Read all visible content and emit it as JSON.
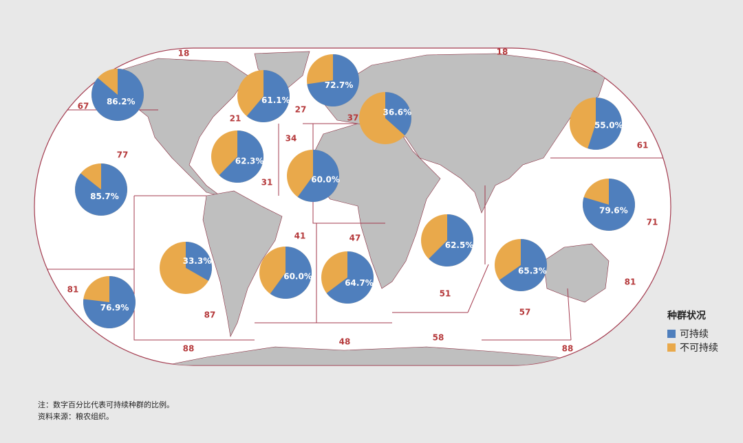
{
  "legend": {
    "title": "种群状况",
    "items": [
      {
        "name": "可持续",
        "color": "#4f7fbd"
      },
      {
        "name": "不可持续",
        "color": "#e9a94b"
      }
    ]
  },
  "areas": [
    "18",
    "18",
    "67",
    "21",
    "27",
    "37",
    "34",
    "77",
    "31",
    "61",
    "71",
    "41",
    "47",
    "81",
    "87",
    "51",
    "57",
    "81",
    "88",
    "48",
    "58",
    "88"
  ],
  "pies": [
    {
      "value": 86.2,
      "label": "86.2%"
    },
    {
      "value": 61.1,
      "label": "61.1%"
    },
    {
      "value": 72.7,
      "label": "72.7%"
    },
    {
      "value": 36.6,
      "label": "36.6%"
    },
    {
      "value": 55.0,
      "label": "55.0%"
    },
    {
      "value": 62.3,
      "label": "62.3%"
    },
    {
      "value": 60.0,
      "label": "60.0%"
    },
    {
      "value": 85.7,
      "label": "85.7%"
    },
    {
      "value": 79.6,
      "label": "79.6%"
    },
    {
      "value": 62.5,
      "label": "62.5%"
    },
    {
      "value": 33.3,
      "label": "33.3%"
    },
    {
      "value": 60.0,
      "label": "60.0%"
    },
    {
      "value": 64.7,
      "label": "64.7%"
    },
    {
      "value": 65.3,
      "label": "65.3%"
    },
    {
      "value": 76.9,
      "label": "76.9%"
    }
  ],
  "notes": [
    "注：数字百分比代表可持续种群的比例。",
    "资料来源：粮农组织。"
  ]
}
